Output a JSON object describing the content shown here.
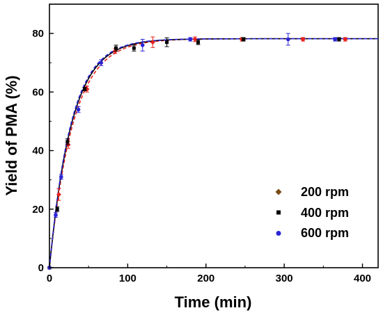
{
  "chart_data": {
    "type": "scatter",
    "title": "",
    "xlabel": "Time (min)",
    "ylabel": "Yield of PMA (%)",
    "xlim": [
      0,
      420
    ],
    "ylim": [
      0,
      90
    ],
    "xticks": [
      0,
      100,
      200,
      300,
      400
    ],
    "yticks": [
      0,
      20,
      40,
      60,
      80
    ],
    "grid": false,
    "legend_position": "bottom-right",
    "series": [
      {
        "name": "200 rpm",
        "marker": "diamond",
        "color": "#7a4a12",
        "fit_color": "#e8201b",
        "fit_style": "dashed",
        "fit": {
          "ymax": 78.2,
          "k": 0.033
        },
        "points": [
          {
            "x": 0,
            "y": 0,
            "err": 0
          },
          {
            "x": 12,
            "y": 25,
            "err": 2.0
          },
          {
            "x": 24,
            "y": 42,
            "err": 1.2
          },
          {
            "x": 48,
            "y": 61,
            "err": 1.0
          },
          {
            "x": 84,
            "y": 74,
            "err": 0.8
          },
          {
            "x": 132,
            "y": 77,
            "err": 1.8
          },
          {
            "x": 186,
            "y": 78,
            "err": 0.8
          },
          {
            "x": 246,
            "y": 78,
            "err": 0.6
          },
          {
            "x": 324,
            "y": 78,
            "err": 0.6
          },
          {
            "x": 378,
            "y": 78,
            "err": 0.6
          }
        ]
      },
      {
        "name": "400 rpm",
        "marker": "square",
        "color": "#000000",
        "fit_color": "#000000",
        "fit_style": "solid",
        "fit": {
          "ymax": 78.2,
          "k": 0.035
        },
        "points": [
          {
            "x": 0,
            "y": 0,
            "err": 0
          },
          {
            "x": 10,
            "y": 20,
            "err": 0.8
          },
          {
            "x": 23,
            "y": 43,
            "err": 1.0
          },
          {
            "x": 45,
            "y": 61,
            "err": 0.6
          },
          {
            "x": 85,
            "y": 75,
            "err": 1.0
          },
          {
            "x": 108,
            "y": 75,
            "err": 1.0
          },
          {
            "x": 150,
            "y": 77,
            "err": 1.5
          },
          {
            "x": 190,
            "y": 77,
            "err": 0.8
          },
          {
            "x": 248,
            "y": 78,
            "err": 0.6
          },
          {
            "x": 370,
            "y": 78,
            "err": 0.6
          }
        ]
      },
      {
        "name": "600 rpm",
        "marker": "circle",
        "color": "#2a24d6",
        "fit_color": "#2a24d6",
        "fit_style": "dashed",
        "fit": {
          "ymax": 78.2,
          "k": 0.036
        },
        "points": [
          {
            "x": 0,
            "y": 0,
            "err": 0
          },
          {
            "x": 8,
            "y": 18,
            "err": 0.8
          },
          {
            "x": 15,
            "y": 31,
            "err": 0.8
          },
          {
            "x": 37,
            "y": 54,
            "err": 1.0
          },
          {
            "x": 66,
            "y": 70,
            "err": 1.0
          },
          {
            "x": 119,
            "y": 76,
            "err": 2.0
          },
          {
            "x": 180,
            "y": 78,
            "err": 0.6
          },
          {
            "x": 305,
            "y": 78,
            "err": 2.0
          },
          {
            "x": 365,
            "y": 78,
            "err": 0.6
          }
        ]
      }
    ]
  }
}
